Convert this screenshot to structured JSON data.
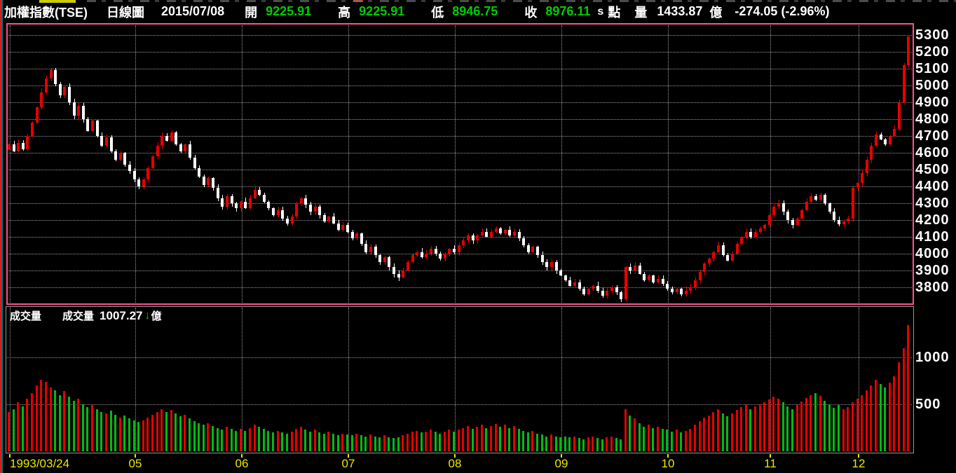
{
  "header": {
    "title": "加權指數(TSE)",
    "chart_type": "日線圖",
    "date": "2015/07/08",
    "open_label": "開",
    "open": "9225.91",
    "high_label": "高",
    "high": "9225.91",
    "low_label": "低",
    "low": "8946.75",
    "close_label": "收",
    "close": "8976.11",
    "s_marker": "s",
    "point_label": "點",
    "volume_label": "量",
    "volume": "1433.87",
    "volume_unit": "億",
    "change": "-274.05 (-2.96%)"
  },
  "volume_pane": {
    "title": "成交量",
    "series_label": "成交量",
    "value": "1007.27",
    "arrow": "↓",
    "unit": "億"
  },
  "colors": {
    "up_candle": "#e60000",
    "down_candle": "#ffffff",
    "volume_up": "#e60000",
    "volume_down": "#00bb11",
    "grid": "#999999",
    "price_pane_border": "#ff4f8f",
    "volume_pane_border": "#9a9a9a",
    "axis_price_label": "#ffffff",
    "axis_month_label": "#e8e800",
    "header_value_green": "#00cc00"
  },
  "chart_data": {
    "type": "candlestick_with_volume",
    "description": "Daily candles of Taiwan weighted index shown from 1993/03/24 through December; red=up, white=down; volume bars red=up day, green=down day",
    "price_axis": {
      "min": 3800,
      "max": 5300,
      "step": 100,
      "ticks": [
        5300,
        5200,
        5100,
        5000,
        4900,
        4800,
        4700,
        4600,
        4500,
        4400,
        4300,
        4200,
        4100,
        4000,
        3900,
        3800
      ]
    },
    "volume_axis": {
      "ticks": [
        1000,
        500
      ],
      "unit": "億"
    },
    "months": [
      {
        "label": "1993/03/24",
        "i": 0,
        "align": "left"
      },
      {
        "label": "05",
        "i": 27
      },
      {
        "label": "06",
        "i": 50
      },
      {
        "label": "07",
        "i": 73
      },
      {
        "label": "08",
        "i": 96
      },
      {
        "label": "09",
        "i": 119
      },
      {
        "label": "10",
        "i": 142
      },
      {
        "label": "11",
        "i": 164
      },
      {
        "label": "12",
        "i": 183
      }
    ],
    "first_open": 4620,
    "closes": [
      4650,
      4610,
      4660,
      4620,
      4700,
      4780,
      4870,
      4960,
      5040,
      5090,
      5010,
      4940,
      4990,
      4900,
      4820,
      4880,
      4800,
      4730,
      4790,
      4700,
      4640,
      4690,
      4610,
      4560,
      4600,
      4530,
      4490,
      4440,
      4400,
      4440,
      4510,
      4580,
      4640,
      4700,
      4670,
      4720,
      4650,
      4610,
      4650,
      4570,
      4510,
      4460,
      4410,
      4450,
      4390,
      4330,
      4280,
      4340,
      4300,
      4270,
      4310,
      4270,
      4330,
      4380,
      4350,
      4310,
      4270,
      4230,
      4260,
      4210,
      4180,
      4220,
      4300,
      4330,
      4290,
      4250,
      4280,
      4230,
      4190,
      4220,
      4180,
      4140,
      4170,
      4130,
      4090,
      4120,
      4060,
      4010,
      4040,
      3990,
      3950,
      3980,
      3920,
      3880,
      3860,
      3900,
      3950,
      3990,
      4010,
      3980,
      4000,
      4030,
      4000,
      3970,
      4000,
      4030,
      4010,
      4050,
      4080,
      4110,
      4080,
      4110,
      4130,
      4100,
      4130,
      4150,
      4120,
      4140,
      4110,
      4130,
      4090,
      4050,
      4010,
      4040,
      3990,
      3950,
      3920,
      3950,
      3900,
      3870,
      3840,
      3810,
      3830,
      3790,
      3760,
      3790,
      3810,
      3780,
      3750,
      3780,
      3800,
      3770,
      3730,
      3920,
      3900,
      3930,
      3880,
      3840,
      3870,
      3830,
      3850,
      3820,
      3790,
      3770,
      3790,
      3760,
      3780,
      3800,
      3840,
      3890,
      3940,
      3970,
      4010,
      4050,
      3990,
      3960,
      4000,
      4060,
      4100,
      4130,
      4100,
      4130,
      4150,
      4170,
      4230,
      4280,
      4300,
      4250,
      4200,
      4170,
      4210,
      4260,
      4310,
      4340,
      4320,
      4350,
      4300,
      4250,
      4200,
      4175,
      4190,
      4210,
      4390,
      4420,
      4480,
      4560,
      4640,
      4710,
      4680,
      4650,
      4700,
      4740,
      4900,
      5120,
      5290
    ],
    "volumes": [
      420,
      450,
      520,
      480,
      560,
      620,
      700,
      760,
      740,
      680,
      650,
      600,
      640,
      580,
      540,
      560,
      500,
      470,
      490,
      450,
      420,
      400,
      430,
      390,
      360,
      380,
      350,
      330,
      310,
      330,
      360,
      390,
      420,
      450,
      420,
      440,
      400,
      370,
      390,
      350,
      320,
      300,
      280,
      300,
      270,
      250,
      230,
      260,
      240,
      220,
      240,
      220,
      250,
      280,
      260,
      240,
      220,
      200,
      220,
      200,
      190,
      210,
      240,
      260,
      230,
      210,
      230,
      200,
      190,
      210,
      190,
      170,
      190,
      180,
      170,
      190,
      170,
      160,
      180,
      160,
      150,
      170,
      150,
      140,
      150,
      170,
      190,
      210,
      220,
      200,
      210,
      230,
      210,
      190,
      210,
      230,
      210,
      230,
      250,
      270,
      240,
      260,
      280,
      250,
      270,
      290,
      260,
      280,
      250,
      270,
      240,
      220,
      200,
      220,
      190,
      180,
      160,
      180,
      160,
      150,
      160,
      150,
      160,
      140,
      130,
      150,
      160,
      140,
      130,
      150,
      160,
      140,
      130,
      450,
      380,
      350,
      300,
      260,
      280,
      250,
      260,
      240,
      230,
      210,
      230,
      200,
      220,
      240,
      280,
      320,
      360,
      380,
      420,
      450,
      400,
      370,
      400,
      440,
      470,
      500,
      450,
      480,
      500,
      520,
      550,
      580,
      560,
      520,
      480,
      450,
      490,
      530,
      570,
      600,
      620,
      590,
      540,
      500,
      460,
      490,
      450,
      470,
      520,
      560,
      600,
      650,
      700,
      760,
      720,
      680,
      730,
      800,
      950,
      1100,
      1340
    ]
  }
}
